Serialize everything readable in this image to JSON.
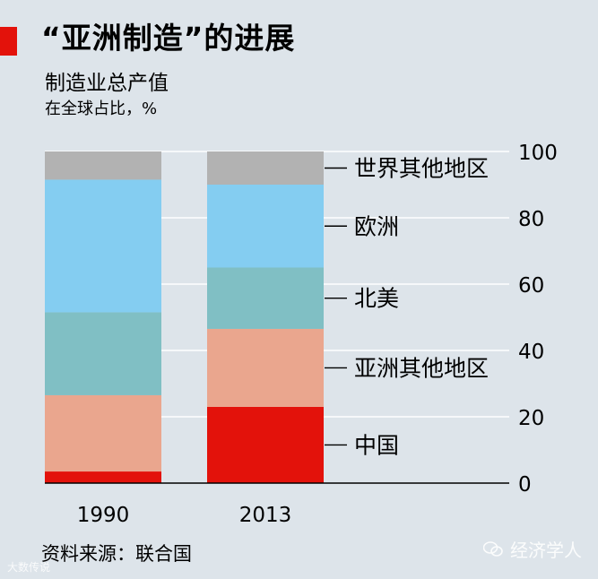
{
  "title": "“亚洲制造”的进展",
  "subtitle": "制造业总产值",
  "unit": "在全球占比，%",
  "source": "资料来源：联合国",
  "brand": "经济学人",
  "watermark": "大数传说",
  "colors": {
    "accent": "#e3120b",
    "background": "#dde4ea",
    "china": "#e3120b",
    "rest_of_asia": "#eaa68e",
    "north_america": "#80bfc4",
    "europe": "#84cdf1",
    "rest_of_world": "#b2b2b2",
    "grid": "#ffffff",
    "axis": "#000000"
  },
  "chart_data": {
    "type": "bar",
    "stacked": true,
    "title": "“亚洲制造”的进展",
    "subtitle": "制造业总产值",
    "ylabel": "在全球占比，%",
    "categories": [
      "1990",
      "2013"
    ],
    "ylim": [
      0,
      100
    ],
    "yticks": [
      0,
      20,
      40,
      60,
      80,
      100
    ],
    "grid": true,
    "legend_position": "right",
    "series": [
      {
        "name": "中国",
        "values": [
          3.5,
          23
        ],
        "color": "#e3120b"
      },
      {
        "name": "亚洲其他地区",
        "values": [
          23,
          23.5
        ],
        "color": "#eaa68e"
      },
      {
        "name": "北美",
        "values": [
          25,
          18.5
        ],
        "color": "#80bfc4"
      },
      {
        "name": "欧洲",
        "values": [
          40,
          25
        ],
        "color": "#84cdf1"
      },
      {
        "name": "世界其他地区",
        "values": [
          8.5,
          10
        ],
        "color": "#b2b2b2"
      }
    ]
  }
}
